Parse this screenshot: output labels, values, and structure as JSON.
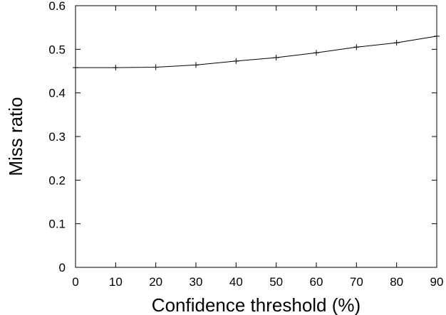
{
  "chart_data": {
    "type": "line",
    "title": "",
    "xlabel": "Confidence threshold (%)",
    "ylabel": "Miss ratio",
    "xlim": [
      0,
      90
    ],
    "ylim": [
      0,
      0.6
    ],
    "xticks": [
      "0",
      "10",
      "20",
      "30",
      "40",
      "50",
      "60",
      "70",
      "80",
      "90"
    ],
    "yticks": [
      "0",
      "0.1",
      "0.2",
      "0.3",
      "0.4",
      "0.5",
      "0.6"
    ],
    "grid": false,
    "legend": "none",
    "series": [
      {
        "x": [
          0,
          10,
          20,
          30,
          40,
          50,
          60,
          70,
          80,
          90
        ],
        "y": [
          0.458,
          0.458,
          0.459,
          0.464,
          0.473,
          0.481,
          0.492,
          0.505,
          0.515,
          0.53
        ],
        "color": "#000000"
      }
    ]
  }
}
